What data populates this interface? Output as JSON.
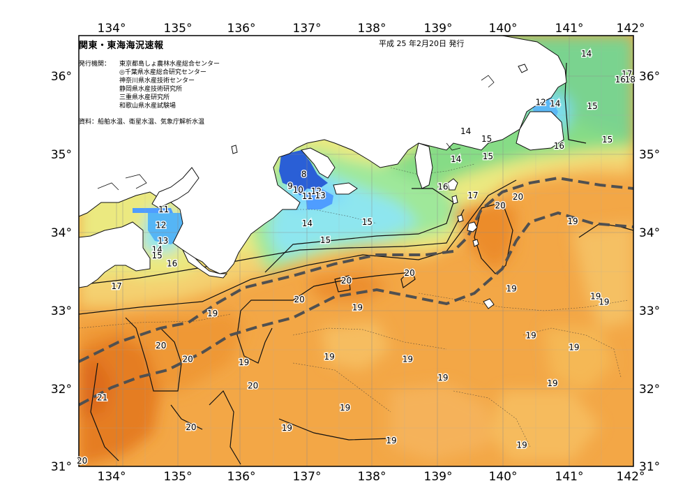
{
  "header": {
    "title": "関東・東海海況速報",
    "issue_date": "平成 25 年2月20日 発行",
    "publisher_label": "発行機関：",
    "publishers": [
      "東京都島しょ農林水産総合センター",
      "◎千葉県水産総合研究センター",
      "神奈川県水産技術センター",
      "静岡県水産技術研究所",
      "三重県水産研究所",
      "和歌山県水産試験場"
    ],
    "sources": "資料：船舶水温、衛星水温、気象庁解析水温"
  },
  "map": {
    "lon_range": [
      133.5,
      142
    ],
    "lat_range": [
      31,
      36.5
    ],
    "lon_ticks": [
      "134°",
      "135°",
      "136°",
      "137°",
      "138°",
      "139°",
      "140°",
      "141°",
      "142°"
    ],
    "lat_ticks": [
      "36°",
      "35°",
      "34°",
      "33°",
      "32°",
      "31°"
    ],
    "grid": true,
    "land_color": "#ffffff",
    "kuroshio_axis_style": "dashed dark gray",
    "color_scale": [
      {
        "temp": 9,
        "color": "#2a5fd6"
      },
      {
        "temp": 11,
        "color": "#55a8ff"
      },
      {
        "temp": 13,
        "color": "#8ee6ff"
      },
      {
        "temp": 15,
        "color": "#72da8c"
      },
      {
        "temp": 16,
        "color": "#b5ea6a"
      },
      {
        "temp": 17,
        "color": "#f2e07a"
      },
      {
        "temp": 18,
        "color": "#f5c35c"
      },
      {
        "temp": 19,
        "color": "#f2a33e"
      },
      {
        "temp": 20,
        "color": "#ea8a2a"
      },
      {
        "temp": 21,
        "color": "#dd6a1a"
      }
    ],
    "contour_labels": [
      {
        "text": "14",
        "lon": 141.28,
        "lat": 36.27
      },
      {
        "text": "17",
        "lon": 141.9,
        "lat": 36.01
      },
      {
        "text": "16",
        "lon": 141.8,
        "lat": 35.94
      },
      {
        "text": "18",
        "lon": 141.95,
        "lat": 35.94
      },
      {
        "text": "12",
        "lon": 140.58,
        "lat": 35.65
      },
      {
        "text": "14",
        "lon": 140.8,
        "lat": 35.63
      },
      {
        "text": "15",
        "lon": 141.37,
        "lat": 35.6
      },
      {
        "text": "15",
        "lon": 141.6,
        "lat": 35.17
      },
      {
        "text": "14",
        "lon": 139.43,
        "lat": 35.28
      },
      {
        "text": "15",
        "lon": 139.75,
        "lat": 35.18
      },
      {
        "text": "16",
        "lon": 140.86,
        "lat": 35.09
      },
      {
        "text": "15",
        "lon": 139.77,
        "lat": 34.96
      },
      {
        "text": "14",
        "lon": 139.28,
        "lat": 34.92
      },
      {
        "text": "9",
        "lon": 136.74,
        "lat": 34.58
      },
      {
        "text": "8",
        "lon": 136.95,
        "lat": 34.73
      },
      {
        "text": "10",
        "lon": 136.86,
        "lat": 34.53
      },
      {
        "text": "12",
        "lon": 137.14,
        "lat": 34.51
      },
      {
        "text": "13",
        "lon": 137.2,
        "lat": 34.46
      },
      {
        "text": "11",
        "lon": 137.0,
        "lat": 34.45
      },
      {
        "text": "16",
        "lon": 139.08,
        "lat": 34.57
      },
      {
        "text": "17",
        "lon": 139.54,
        "lat": 34.46
      },
      {
        "text": "20",
        "lon": 139.96,
        "lat": 34.33
      },
      {
        "text": "20",
        "lon": 140.23,
        "lat": 34.44
      },
      {
        "text": "19",
        "lon": 141.07,
        "lat": 34.13
      },
      {
        "text": "14",
        "lon": 137.0,
        "lat": 34.1
      },
      {
        "text": "15",
        "lon": 137.92,
        "lat": 34.12
      },
      {
        "text": "15",
        "lon": 137.28,
        "lat": 33.89
      },
      {
        "text": "11",
        "lon": 134.8,
        "lat": 34.28
      },
      {
        "text": "12",
        "lon": 134.76,
        "lat": 34.08
      },
      {
        "text": "13",
        "lon": 134.79,
        "lat": 33.88
      },
      {
        "text": "14",
        "lon": 134.7,
        "lat": 33.77
      },
      {
        "text": "15",
        "lon": 134.7,
        "lat": 33.69
      },
      {
        "text": "16",
        "lon": 134.93,
        "lat": 33.59
      },
      {
        "text": "17",
        "lon": 134.08,
        "lat": 33.3
      },
      {
        "text": "20",
        "lon": 138.57,
        "lat": 33.47
      },
      {
        "text": "20",
        "lon": 137.6,
        "lat": 33.37
      },
      {
        "text": "19",
        "lon": 140.13,
        "lat": 33.27
      },
      {
        "text": "19",
        "lon": 141.42,
        "lat": 33.17
      },
      {
        "text": "19",
        "lon": 141.55,
        "lat": 33.1
      },
      {
        "text": "20",
        "lon": 136.88,
        "lat": 33.13
      },
      {
        "text": "19",
        "lon": 137.77,
        "lat": 33.03
      },
      {
        "text": "19",
        "lon": 135.55,
        "lat": 32.95
      },
      {
        "text": "19",
        "lon": 140.43,
        "lat": 32.67
      },
      {
        "text": "20",
        "lon": 134.76,
        "lat": 32.54
      },
      {
        "text": "19",
        "lon": 141.09,
        "lat": 32.52
      },
      {
        "text": "19",
        "lon": 137.34,
        "lat": 32.4
      },
      {
        "text": "19",
        "lon": 138.54,
        "lat": 32.37
      },
      {
        "text": "20",
        "lon": 135.17,
        "lat": 32.37
      },
      {
        "text": "19",
        "lon": 136.03,
        "lat": 32.33
      },
      {
        "text": "19",
        "lon": 139.08,
        "lat": 32.13
      },
      {
        "text": "19",
        "lon": 140.76,
        "lat": 32.06
      },
      {
        "text": "20",
        "lon": 136.17,
        "lat": 32.03
      },
      {
        "text": "21",
        "lon": 133.86,
        "lat": 31.88
      },
      {
        "text": "19",
        "lon": 137.58,
        "lat": 31.75
      },
      {
        "text": "20",
        "lon": 135.22,
        "lat": 31.5
      },
      {
        "text": "19",
        "lon": 136.69,
        "lat": 31.49
      },
      {
        "text": "19",
        "lon": 138.29,
        "lat": 31.33
      },
      {
        "text": "19",
        "lon": 140.29,
        "lat": 31.27
      },
      {
        "text": "20",
        "lon": 133.55,
        "lat": 31.07
      }
    ]
  }
}
